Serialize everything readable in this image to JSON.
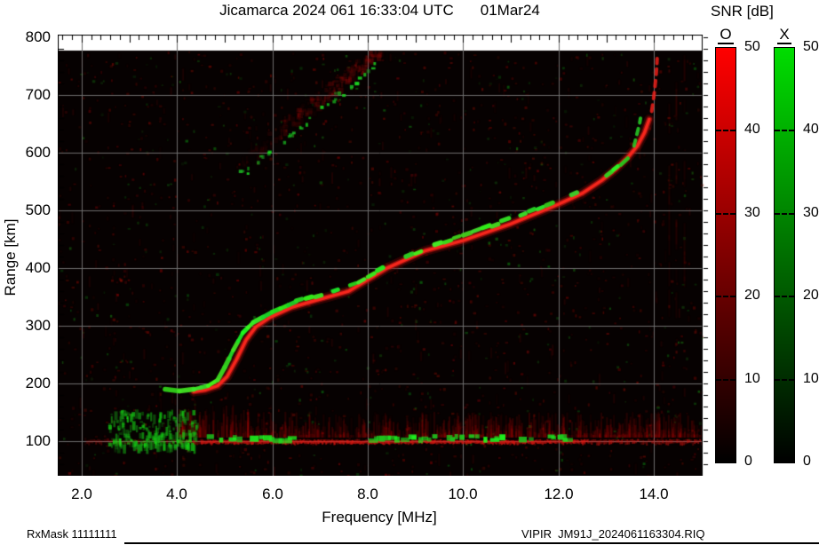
{
  "header": {
    "title": "Jicamarca 2024 061 16:33:04 UTC",
    "date": "01Mar24"
  },
  "footer": {
    "rx_mask": "RxMask 11111111",
    "file": "VIPIR  JM91J_2024061163304.RIQ"
  },
  "chart_data": {
    "type": "heatmap",
    "subtype": "ionogram",
    "title": "Jicamarca 2024 061 16:33:04 UTC",
    "date_label": "01Mar24",
    "xlabel": "Frequency [MHz]",
    "ylabel": "Range [km]",
    "xlim": [
      1.5,
      15.0
    ],
    "ylim": [
      40,
      805
    ],
    "grid": true,
    "grid_color": "#6e6e6e",
    "background": "#060101",
    "x_ticks": [
      2,
      4,
      6,
      8,
      10,
      12,
      14
    ],
    "x_tick_labels": [
      "2.0",
      "4.0",
      "6.0",
      "8.0",
      "10.0",
      "12.0",
      "14.0"
    ],
    "y_ticks": [
      800,
      700,
      600,
      500,
      400,
      300,
      200,
      100
    ],
    "y_tick_labels": [
      "800",
      "700",
      "600",
      "500",
      "400",
      "300",
      "200",
      "100"
    ],
    "colorbar": {
      "title": "SNR [dB]",
      "min": 0,
      "max": 50,
      "ticks": [
        50,
        40,
        30,
        20,
        10,
        0
      ],
      "tick_labels": [
        "50",
        "40",
        "30",
        "20",
        "10",
        "0"
      ],
      "series": [
        {
          "label": "O",
          "color": "#ff0000"
        },
        {
          "label": "X",
          "color": "#00dd00"
        }
      ]
    },
    "traces": {
      "o_main": {
        "name": "O-mode F-layer echo",
        "color": "#ff2820",
        "points": [
          [
            4.35,
            186
          ],
          [
            4.6,
            189
          ],
          [
            4.85,
            196
          ],
          [
            5.05,
            212
          ],
          [
            5.25,
            242
          ],
          [
            5.45,
            276
          ],
          [
            5.65,
            298
          ],
          [
            5.95,
            315
          ],
          [
            6.4,
            332
          ],
          [
            6.9,
            344
          ],
          [
            7.6,
            360
          ],
          [
            8.4,
            400
          ],
          [
            9.2,
            430
          ],
          [
            10.0,
            448
          ],
          [
            11.0,
            477
          ],
          [
            12.0,
            511
          ],
          [
            12.5,
            530
          ],
          [
            12.9,
            552
          ],
          [
            13.2,
            572
          ],
          [
            13.45,
            592
          ],
          [
            13.65,
            612
          ],
          [
            13.8,
            635
          ],
          [
            13.9,
            658
          ]
        ]
      },
      "o_asymptote_dashes": [
        [
          13.95,
          672
        ],
        [
          13.99,
          694
        ],
        [
          14.02,
          715
        ],
        [
          14.045,
          736
        ],
        [
          14.06,
          755
        ],
        [
          14.07,
          772
        ]
      ],
      "x_main": {
        "name": "X-mode F-layer echo",
        "color": "#22dd22",
        "points": [
          [
            3.75,
            190
          ],
          [
            4.05,
            187
          ],
          [
            4.35,
            190
          ],
          [
            4.65,
            196
          ],
          [
            4.85,
            206
          ],
          [
            5.0,
            228
          ],
          [
            5.18,
            258
          ],
          [
            5.38,
            288
          ],
          [
            5.6,
            306
          ],
          [
            6.0,
            324
          ],
          [
            6.5,
            342
          ],
          [
            7.1,
            356
          ],
          [
            7.8,
            376
          ],
          [
            8.6,
            412
          ],
          [
            9.4,
            440
          ],
          [
            10.2,
            462
          ],
          [
            11.2,
            492
          ],
          [
            12.1,
            522
          ],
          [
            12.6,
            540
          ],
          [
            13.0,
            560
          ],
          [
            13.3,
            579
          ],
          [
            13.5,
            594
          ]
        ]
      },
      "x_asymptote_dashes": [
        [
          13.58,
          612
        ],
        [
          13.64,
          632
        ],
        [
          13.7,
          652
        ],
        [
          13.73,
          668
        ]
      ],
      "second_hop": {
        "name": "second-hop echo",
        "from": [
          5.28,
          562
        ],
        "to": [
          8.5,
          782
        ]
      },
      "e_region": {
        "name": "E-region echo",
        "range_km": 100,
        "f_from": 2.1,
        "f_to": 15.0,
        "green_cloud_f": [
          2.55,
          4.4
        ],
        "green_chain_f": [
          [
            4.35,
            6.35
          ],
          [
            7.9,
            12.15
          ]
        ],
        "red_fuzz_f": [
          4.0,
          15.0
        ]
      }
    }
  }
}
